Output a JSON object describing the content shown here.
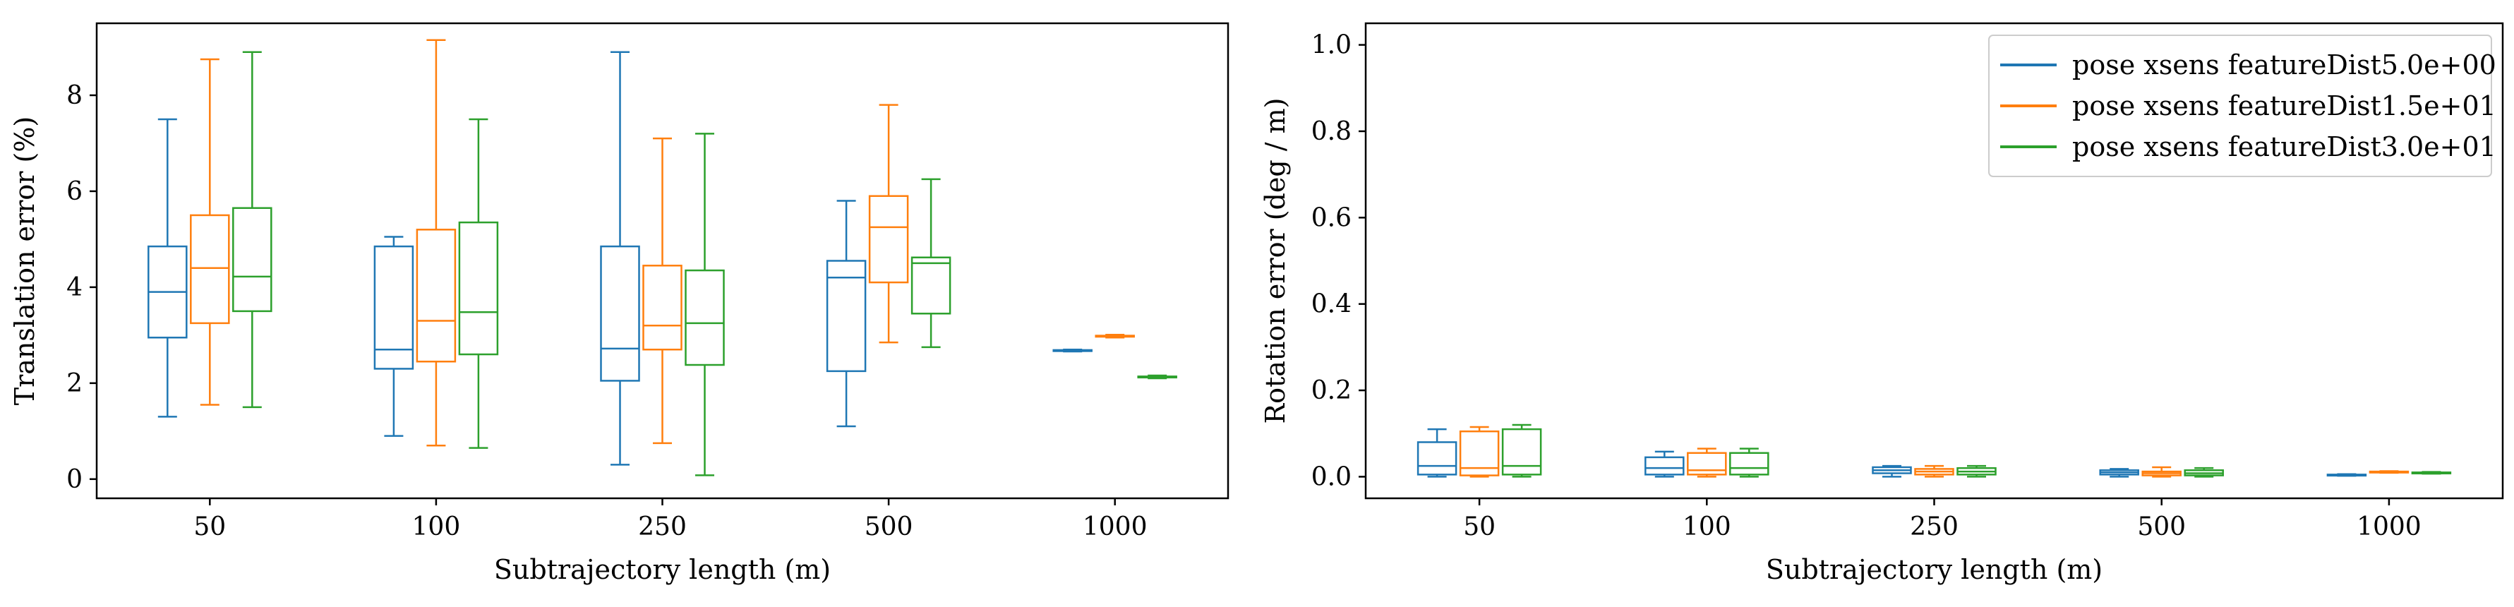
{
  "colors": {
    "series": [
      "#1f77b4",
      "#ff7f0e",
      "#2ca02c"
    ],
    "axis": "#000000",
    "legend_border": "#cccccc"
  },
  "chart_data": [
    {
      "type": "box",
      "xlabel": "Subtrajectory length (m)",
      "ylabel": "Translation error (%)",
      "ylim": [
        -0.4,
        9.5
      ],
      "yticks": [
        0,
        2,
        4,
        6,
        8
      ],
      "grid": false,
      "legend": null,
      "categories": [
        "50",
        "100",
        "250",
        "500",
        "1000"
      ],
      "series": [
        {
          "name": "pose xsens featureDist5.0e+00",
          "boxes": [
            {
              "whislo": 1.3,
              "q1": 2.95,
              "med": 3.9,
              "q3": 4.85,
              "whishi": 7.5
            },
            {
              "whislo": 0.9,
              "q1": 2.3,
              "med": 2.7,
              "q3": 4.85,
              "whishi": 5.05
            },
            {
              "whislo": 0.3,
              "q1": 2.05,
              "med": 2.72,
              "q3": 4.85,
              "whishi": 8.9
            },
            {
              "whislo": 1.1,
              "q1": 2.25,
              "med": 4.2,
              "q3": 4.55,
              "whishi": 5.8
            },
            {
              "whislo": 2.66,
              "q1": 2.67,
              "med": 2.68,
              "q3": 2.69,
              "whishi": 2.7
            }
          ]
        },
        {
          "name": "pose xsens featureDist1.5e+01",
          "boxes": [
            {
              "whislo": 1.55,
              "q1": 3.25,
              "med": 4.4,
              "q3": 5.5,
              "whishi": 8.75
            },
            {
              "whislo": 0.7,
              "q1": 2.45,
              "med": 3.3,
              "q3": 5.2,
              "whishi": 9.15
            },
            {
              "whislo": 0.75,
              "q1": 2.7,
              "med": 3.2,
              "q3": 4.45,
              "whishi": 7.1
            },
            {
              "whislo": 2.85,
              "q1": 4.1,
              "med": 5.25,
              "q3": 5.9,
              "whishi": 7.8
            },
            {
              "whislo": 2.95,
              "q1": 2.97,
              "med": 2.98,
              "q3": 2.99,
              "whishi": 3.01
            }
          ]
        },
        {
          "name": "pose xsens featureDist3.0e+01",
          "boxes": [
            {
              "whislo": 1.5,
              "q1": 3.5,
              "med": 4.22,
              "q3": 5.65,
              "whishi": 8.9
            },
            {
              "whislo": 0.65,
              "q1": 2.6,
              "med": 3.48,
              "q3": 5.35,
              "whishi": 7.5
            },
            {
              "whislo": 0.08,
              "q1": 2.38,
              "med": 3.25,
              "q3": 4.35,
              "whishi": 7.2
            },
            {
              "whislo": 2.75,
              "q1": 3.45,
              "med": 4.5,
              "q3": 4.62,
              "whishi": 6.25
            },
            {
              "whislo": 2.1,
              "q1": 2.12,
              "med": 2.13,
              "q3": 2.14,
              "whishi": 2.16
            }
          ]
        }
      ]
    },
    {
      "type": "box",
      "xlabel": "Subtrajectory length (m)",
      "ylabel": "Rotation error (deg / m)",
      "ylim": [
        -0.05,
        1.05
      ],
      "yticks": [
        0.0,
        0.2,
        0.4,
        0.6,
        0.8,
        1.0
      ],
      "grid": false,
      "legend": "top-right",
      "categories": [
        "50",
        "100",
        "250",
        "500",
        "1000"
      ],
      "series": [
        {
          "name": "pose xsens featureDist5.0e+00",
          "boxes": [
            {
              "whislo": 0.0,
              "q1": 0.005,
              "med": 0.025,
              "q3": 0.08,
              "whishi": 0.11
            },
            {
              "whislo": 0.0,
              "q1": 0.005,
              "med": 0.02,
              "q3": 0.045,
              "whishi": 0.058
            },
            {
              "whislo": 0.0,
              "q1": 0.008,
              "med": 0.015,
              "q3": 0.022,
              "whishi": 0.025
            },
            {
              "whislo": 0.0,
              "q1": 0.005,
              "med": 0.01,
              "q3": 0.015,
              "whishi": 0.018
            },
            {
              "whislo": 0.002,
              "q1": 0.003,
              "med": 0.004,
              "q3": 0.005,
              "whishi": 0.006
            }
          ]
        },
        {
          "name": "pose xsens featureDist1.5e+01",
          "boxes": [
            {
              "whislo": 0.0,
              "q1": 0.003,
              "med": 0.02,
              "q3": 0.105,
              "whishi": 0.115
            },
            {
              "whislo": 0.0,
              "q1": 0.005,
              "med": 0.015,
              "q3": 0.055,
              "whishi": 0.065
            },
            {
              "whislo": 0.0,
              "q1": 0.005,
              "med": 0.012,
              "q3": 0.018,
              "whishi": 0.025
            },
            {
              "whislo": 0.0,
              "q1": 0.003,
              "med": 0.008,
              "q3": 0.012,
              "whishi": 0.022
            },
            {
              "whislo": 0.009,
              "q1": 0.01,
              "med": 0.011,
              "q3": 0.012,
              "whishi": 0.013
            }
          ]
        },
        {
          "name": "pose xsens featureDist3.0e+01",
          "boxes": [
            {
              "whislo": 0.0,
              "q1": 0.005,
              "med": 0.025,
              "q3": 0.11,
              "whishi": 0.12
            },
            {
              "whislo": 0.0,
              "q1": 0.005,
              "med": 0.02,
              "q3": 0.055,
              "whishi": 0.065
            },
            {
              "whislo": 0.0,
              "q1": 0.005,
              "med": 0.012,
              "q3": 0.02,
              "whishi": 0.025
            },
            {
              "whislo": 0.0,
              "q1": 0.003,
              "med": 0.008,
              "q3": 0.015,
              "whishi": 0.02
            },
            {
              "whislo": 0.007,
              "q1": 0.008,
              "med": 0.009,
              "q3": 0.01,
              "whishi": 0.011
            }
          ]
        }
      ]
    }
  ]
}
